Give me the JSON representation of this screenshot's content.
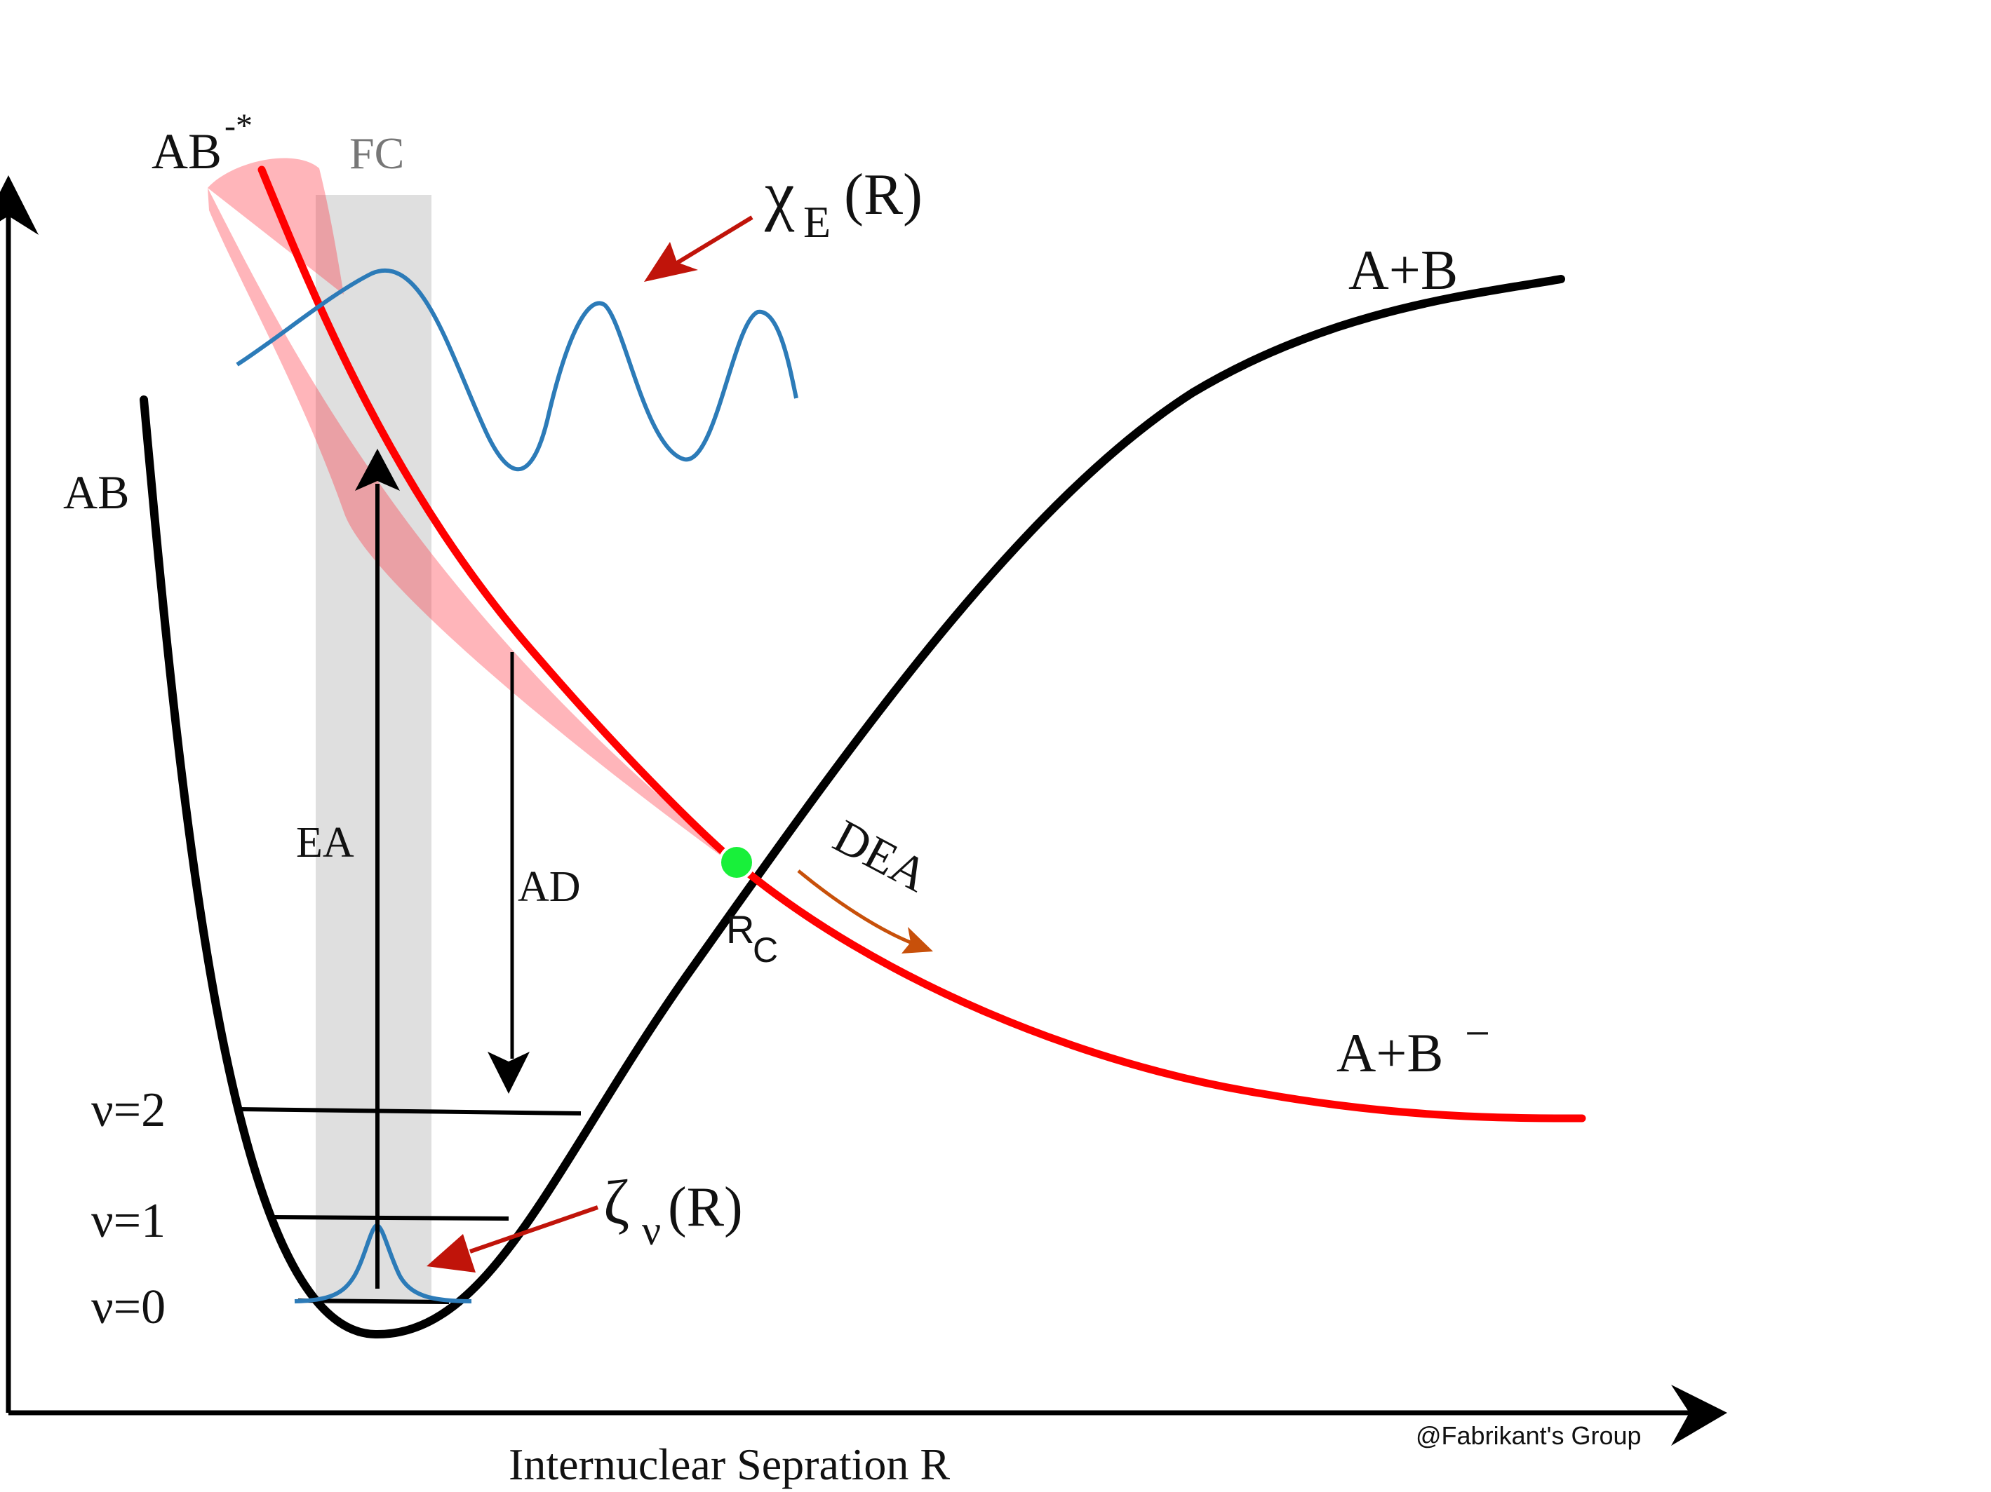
{
  "labels": {
    "anion_excited": "AB",
    "anion_excited_sup": "-*",
    "franck_condon": "FC",
    "chi_symbol": "χ",
    "chi_sub": "E",
    "chi_arg": "(R)",
    "asymptote_neutral": "A+B",
    "ground_state": "AB",
    "electron_attachment": "EA",
    "autodetachment": "AD",
    "dea": "DEA",
    "crossing_R": "R",
    "crossing_sub": "C",
    "asymptote_anion": "A+B",
    "asymptote_anion_sup": "−",
    "level_v2": "ν=2",
    "level_v1": "ν=1",
    "level_v0": "ν=0",
    "zeta_symbol": "ζ",
    "zeta_sub": "ν",
    "zeta_arg": "(R)",
    "x_axis": "Internuclear Sepration R",
    "credit": "@Fabrikant's Group"
  },
  "colors": {
    "neutral_curve": "#000000",
    "anion_curve": "#ff0000",
    "anion_band": "#ffb3b6",
    "fc_region": "#d9d9d9",
    "wavefunction": "#2c7bb8",
    "pointer_arrow": "#c0140a",
    "dea_arrow": "#c8500a",
    "crossing_point": "#18f03a"
  }
}
